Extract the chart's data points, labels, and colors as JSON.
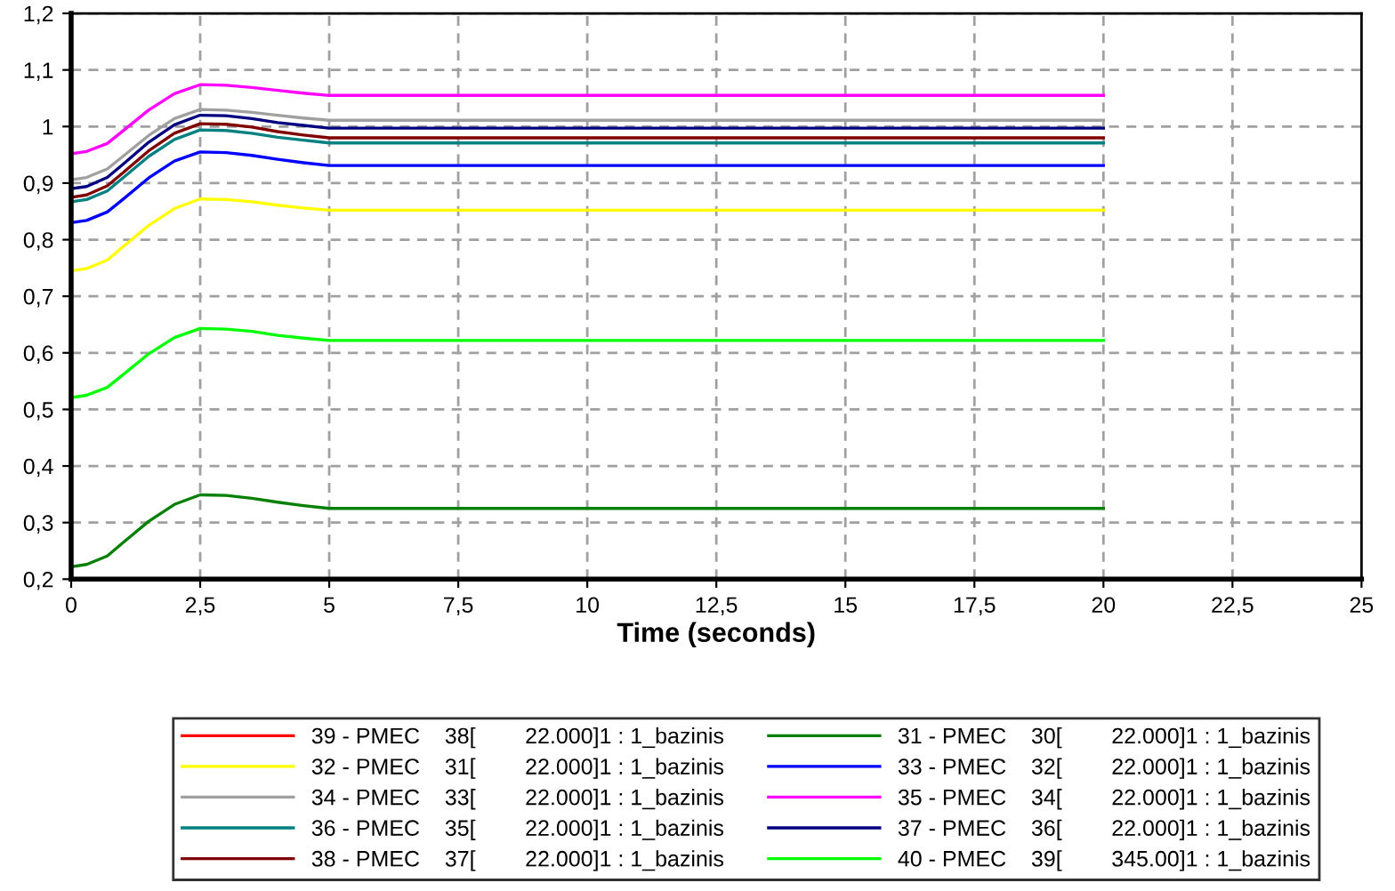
{
  "chart_data": {
    "type": "line",
    "xlabel": "Time (seconds)",
    "x": [
      0,
      0.3,
      0.7,
      1,
      1.5,
      2,
      2.5,
      3,
      3.5,
      4,
      4.5,
      5,
      7.5,
      10,
      12.5,
      15,
      17.5,
      20
    ],
    "xlim": [
      0,
      25
    ],
    "ylim": [
      0.2,
      1.2
    ],
    "xticks": [
      0,
      {
        "value": 2.5,
        "label": "2,5"
      },
      5,
      {
        "value": 7.5,
        "label": "7,5"
      },
      10,
      {
        "value": 12.5,
        "label": "12,5"
      },
      15,
      {
        "value": 17.5,
        "label": "17,5"
      },
      20,
      {
        "value": 22.5,
        "label": "22,5"
      },
      25
    ],
    "yticks": [
      {
        "value": 0.2,
        "label": "0,2"
      },
      {
        "value": 0.3,
        "label": "0,3"
      },
      {
        "value": 0.4,
        "label": "0,4"
      },
      {
        "value": 0.5,
        "label": "0,5"
      },
      {
        "value": 0.6,
        "label": "0,6"
      },
      {
        "value": 0.7,
        "label": "0,7"
      },
      {
        "value": 0.8,
        "label": "0,8"
      },
      {
        "value": 0.9,
        "label": "0,9"
      },
      1,
      {
        "value": 1.1,
        "label": "1,1"
      },
      {
        "value": 1.2,
        "label": "1,2"
      }
    ],
    "grid": true,
    "legend": "bottom",
    "line_style": "solid",
    "marker": "none",
    "series": [
      {
        "name": "39 - PMEC    38[        22.000]1 : 1_bazinis",
        "color": "#ff0000",
        "values": [
          null,
          null,
          null,
          null,
          null,
          null,
          null,
          null,
          null,
          null,
          null,
          null,
          null,
          null,
          null,
          null,
          null,
          null
        ]
      },
      {
        "name": "32 - PMEC    31[        22.000]1 : 1_bazinis",
        "color": "#ffff00",
        "values": [
          0.745,
          0.749,
          0.764,
          0.787,
          0.825,
          0.855,
          0.872,
          0.871,
          0.867,
          0.861,
          0.856,
          0.852,
          0.852,
          0.852,
          0.852,
          0.852,
          0.852,
          0.852
        ]
      },
      {
        "name": "34 - PMEC    33[        22.000]1 : 1_bazinis",
        "color": "#a0a0a0",
        "values": [
          0.906,
          0.91,
          0.925,
          0.947,
          0.984,
          1.014,
          1.03,
          1.029,
          1.025,
          1.02,
          1.015,
          1.011,
          1.011,
          1.011,
          1.011,
          1.011,
          1.011,
          1.011
        ]
      },
      {
        "name": "36 - PMEC    35[        22.000]1 : 1_bazinis",
        "color": "#008080",
        "values": [
          0.867,
          0.871,
          0.886,
          0.909,
          0.947,
          0.977,
          0.994,
          0.993,
          0.988,
          0.981,
          0.976,
          0.971,
          0.971,
          0.971,
          0.971,
          0.971,
          0.971,
          0.971
        ]
      },
      {
        "name": "38 - PMEC    37[        22.000]1 : 1_bazinis",
        "color": "#800000",
        "values": [
          0.875,
          0.879,
          0.895,
          0.918,
          0.957,
          0.988,
          1.005,
          1.004,
          0.999,
          0.991,
          0.985,
          0.98,
          0.98,
          0.98,
          0.98,
          0.98,
          0.98,
          0.98
        ]
      },
      {
        "name": "31 - PMEC    30[        22.000]1 : 1_bazinis",
        "color": "#008000",
        "values": [
          0.222,
          0.226,
          0.241,
          0.264,
          0.302,
          0.332,
          0.349,
          0.348,
          0.343,
          0.336,
          0.33,
          0.325,
          0.325,
          0.325,
          0.325,
          0.325,
          0.325,
          0.325
        ]
      },
      {
        "name": "33 - PMEC    32[        22.000]1 : 1_bazinis",
        "color": "#0000ff",
        "values": [
          0.83,
          0.834,
          0.849,
          0.871,
          0.909,
          0.939,
          0.955,
          0.954,
          0.949,
          0.942,
          0.936,
          0.931,
          0.931,
          0.931,
          0.931,
          0.931,
          0.931,
          0.931
        ]
      },
      {
        "name": "35 - PMEC    34[        22.000]1 : 1_bazinis",
        "color": "#ff00ff",
        "values": [
          0.952,
          0.956,
          0.97,
          0.992,
          1.029,
          1.058,
          1.074,
          1.073,
          1.069,
          1.064,
          1.059,
          1.055,
          1.055,
          1.055,
          1.055,
          1.055,
          1.055,
          1.055
        ]
      },
      {
        "name": "37 - PMEC    36[        22.000]1 : 1_bazinis",
        "color": "#000080",
        "values": [
          0.89,
          0.894,
          0.91,
          0.933,
          0.972,
          1.003,
          1.02,
          1.019,
          1.014,
          1.007,
          1.002,
          0.997,
          0.997,
          0.997,
          0.997,
          0.997,
          0.997,
          0.997
        ]
      },
      {
        "name": "40 - PMEC    39[        345.00]1 : 1_bazinis",
        "color": "#00ff00",
        "values": [
          0.521,
          0.525,
          0.539,
          0.561,
          0.598,
          0.627,
          0.643,
          0.642,
          0.638,
          0.631,
          0.626,
          0.622,
          0.622,
          0.622,
          0.622,
          0.622,
          0.622,
          0.622
        ]
      }
    ]
  }
}
